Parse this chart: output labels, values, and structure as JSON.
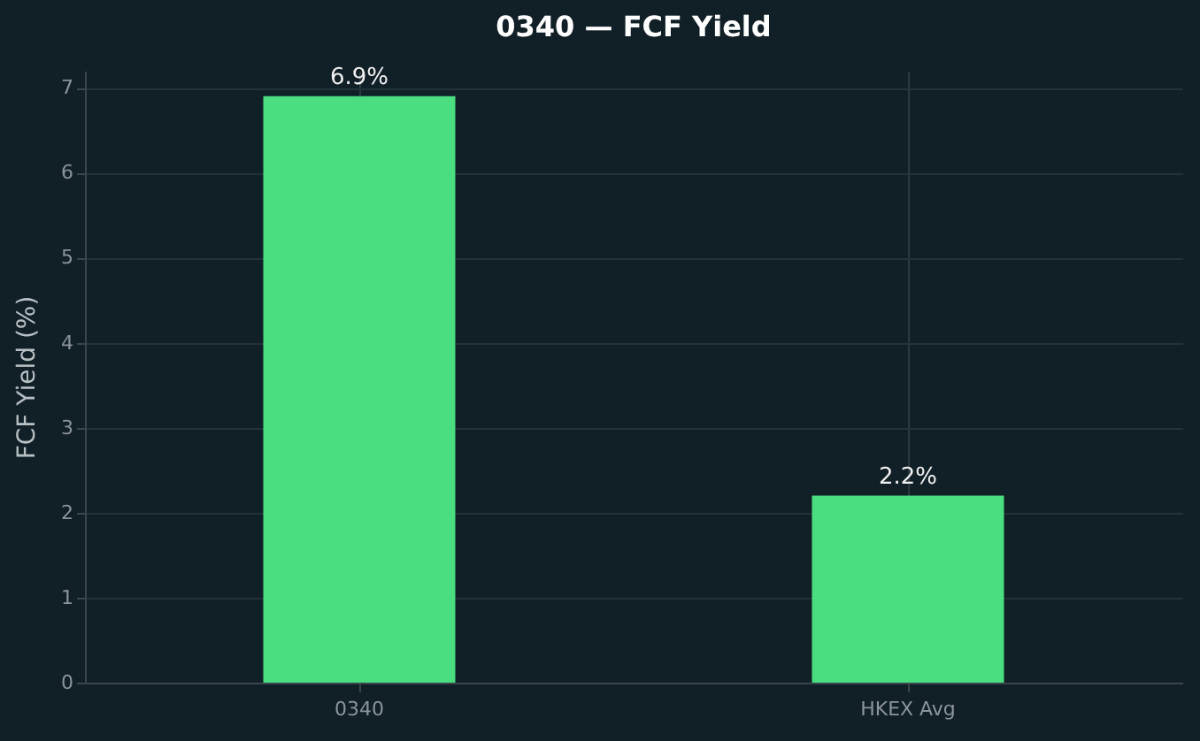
{
  "chart_data": {
    "type": "bar",
    "title": "0340 — FCF Yield",
    "ylabel": "FCF Yield (%)",
    "categories": [
      "0340",
      "HKEX Avg"
    ],
    "values": [
      6.9,
      2.2
    ],
    "color": "#4ade80",
    "value_labels": [
      "6.9%",
      "2.2%"
    ],
    "ylim": [
      0,
      7.2
    ],
    "yticks": [
      0,
      1,
      2,
      3,
      4,
      5,
      6,
      7
    ],
    "grid": true
  }
}
